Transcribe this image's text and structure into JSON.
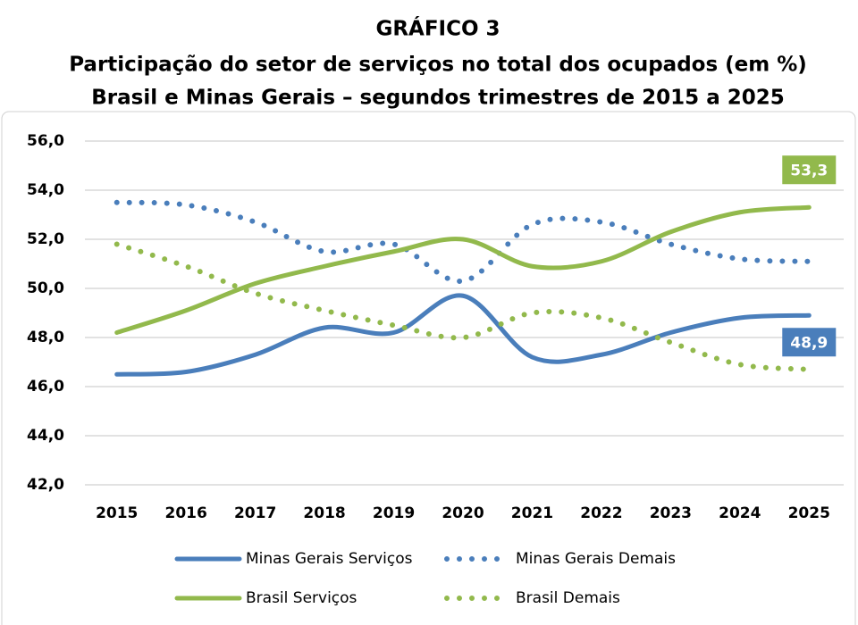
{
  "chart_data": {
    "type": "line",
    "title": "GRÁFICO 3",
    "subtitle": [
      "Participação do setor de serviços no total dos ocupados (em %)",
      "Brasil e Minas Gerais – segundos trimestres de 2015 a 2025"
    ],
    "categories": [
      "2015",
      "2016",
      "2017",
      "2018",
      "2019",
      "2020",
      "2021",
      "2022",
      "2023",
      "2024",
      "2025"
    ],
    "series": [
      {
        "name": "Minas Gerais Serviços",
        "color": "#4a7ebb",
        "style": "solid",
        "values": [
          46.5,
          46.6,
          47.3,
          48.4,
          48.2,
          49.7,
          47.2,
          47.3,
          48.2,
          48.8,
          48.9
        ],
        "value_labels": [
          null,
          null,
          null,
          null,
          null,
          null,
          null,
          null,
          null,
          null,
          "48,9"
        ]
      },
      {
        "name": "Minas Gerais Demais",
        "color": "#4a7ebb",
        "style": "dotted",
        "values": [
          53.5,
          53.4,
          52.7,
          51.5,
          51.8,
          50.3,
          52.6,
          52.7,
          51.8,
          51.2,
          51.1
        ]
      },
      {
        "name": "Brasil Serviços",
        "color": "#92b94c",
        "style": "solid",
        "values": [
          48.2,
          49.1,
          50.2,
          50.9,
          51.5,
          52.0,
          50.9,
          51.1,
          52.3,
          53.1,
          53.3
        ],
        "value_labels": [
          null,
          null,
          null,
          null,
          null,
          null,
          null,
          null,
          null,
          null,
          "53,3"
        ]
      },
      {
        "name": "Brasil Demais",
        "color": "#92b94c",
        "style": "dotted",
        "values": [
          51.8,
          50.9,
          49.8,
          49.1,
          48.5,
          48.0,
          49.0,
          48.8,
          47.8,
          46.9,
          46.7
        ]
      }
    ],
    "ylim": [
      42,
      56
    ],
    "yticks": [
      {
        "value": 42,
        "label": "42,0"
      },
      {
        "value": 44,
        "label": "44,0"
      },
      {
        "value": 46,
        "label": "46,0"
      },
      {
        "value": 48,
        "label": "48,0"
      },
      {
        "value": 50,
        "label": "50,0"
      },
      {
        "value": 52,
        "label": "52,0"
      },
      {
        "value": 54,
        "label": "54,0"
      },
      {
        "value": 56,
        "label": "56,0"
      }
    ],
    "grid": true,
    "legend": "bottom"
  }
}
